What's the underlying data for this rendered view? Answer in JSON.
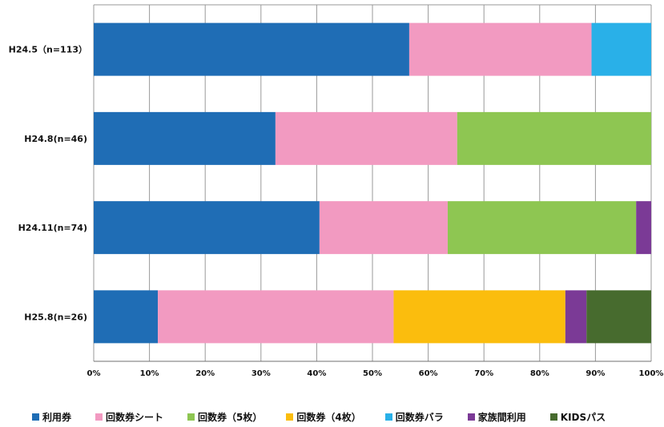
{
  "chart_data": {
    "type": "bar",
    "orientation": "horizontal",
    "stacked": "percent",
    "categories": [
      "H24.5（n=113）",
      "H24.8(n=46)",
      "H24.11(n=74)",
      "H25.8(n=26)"
    ],
    "series": [
      {
        "name": "利用券",
        "color": "#1f6db5",
        "values": [
          56.6,
          32.6,
          40.5,
          11.5
        ]
      },
      {
        "name": "回数券シート",
        "color": "#f29ac1",
        "values": [
          32.7,
          32.6,
          23.0,
          42.3
        ]
      },
      {
        "name": "回数券（5枚）",
        "color": "#8ec652",
        "values": [
          0,
          34.8,
          33.8,
          0
        ]
      },
      {
        "name": "回数券（4枚）",
        "color": "#fbbd0d",
        "values": [
          0,
          0,
          0,
          30.8
        ]
      },
      {
        "name": "回数券バラ",
        "color": "#29b0e8",
        "values": [
          10.7,
          0,
          0,
          0
        ]
      },
      {
        "name": "家族間利用",
        "color": "#7b3a96",
        "values": [
          0,
          0,
          2.7,
          3.8
        ]
      },
      {
        "name": "KIDSパス",
        "color": "#476b2e",
        "values": [
          0,
          0,
          0,
          11.6
        ]
      }
    ],
    "x_ticks": [
      "0%",
      "10%",
      "20%",
      "30%",
      "40%",
      "50%",
      "60%",
      "70%",
      "80%",
      "90%",
      "100%"
    ],
    "xlim": [
      0,
      100
    ],
    "grid": true,
    "legend_position": "bottom"
  }
}
